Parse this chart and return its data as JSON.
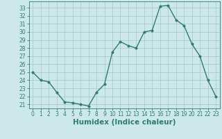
{
  "x": [
    0,
    1,
    2,
    3,
    4,
    5,
    6,
    7,
    8,
    9,
    10,
    11,
    12,
    13,
    14,
    15,
    16,
    17,
    18,
    19,
    20,
    21,
    22,
    23
  ],
  "y": [
    25.0,
    24.0,
    23.8,
    22.5,
    21.3,
    21.2,
    21.0,
    20.8,
    22.5,
    23.5,
    27.5,
    28.8,
    28.3,
    28.0,
    30.0,
    30.2,
    33.2,
    33.3,
    31.5,
    30.8,
    28.5,
    27.0,
    24.0,
    22.0
  ],
  "line_color": "#2d7d6e",
  "marker_color": "#2d7d6e",
  "bg_color": "#cce8e8",
  "grid_color": "#aacccc",
  "axis_color": "#2d7d6e",
  "text_color": "#2d7d6e",
  "xlabel": "Humidex (Indice chaleur)",
  "xlim": [
    -0.5,
    23.5
  ],
  "ylim": [
    20.5,
    33.8
  ],
  "yticks": [
    21,
    22,
    23,
    24,
    25,
    26,
    27,
    28,
    29,
    30,
    31,
    32,
    33
  ],
  "xticks": [
    0,
    1,
    2,
    3,
    4,
    5,
    6,
    7,
    8,
    9,
    10,
    11,
    12,
    13,
    14,
    15,
    16,
    17,
    18,
    19,
    20,
    21,
    22,
    23
  ],
  "tick_fontsize": 5.5,
  "label_fontsize": 7.5,
  "marker_size": 2.5,
  "line_width": 1.0
}
